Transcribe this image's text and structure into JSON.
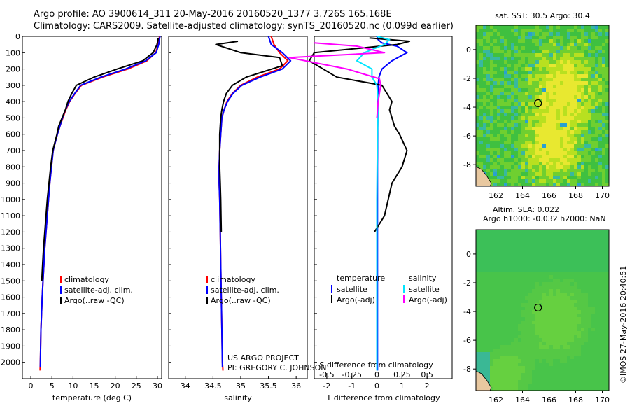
{
  "header": {
    "line1": "Argo profile: AO 3900614_311 20-May-2016 20160520_1377 3.726S 165.168E",
    "line2": "Climatology: CARS2009. Satellite-adjusted climatology: synTS_20160520.nc (0.099d earlier)"
  },
  "credit": {
    "line1": "US ARGO PROJECT",
    "line2": "PI: GREGORY C. JOHNSON"
  },
  "imos_stamp": "©IMOS 27-May-2016 20:40:51",
  "colors": {
    "climatology": "#ff0000",
    "satellite": "#0000ff",
    "argo": "#000000",
    "sal_satellite": "#00e5ff",
    "sal_argo": "#ff00ff"
  },
  "chart_data": [
    {
      "type": "line",
      "xlabel": "temperature (deg C)",
      "ylabel": "",
      "xlim": [
        -2,
        31
      ],
      "ylim": [
        2100,
        0
      ],
      "xticks": [
        0,
        5,
        10,
        15,
        20,
        25,
        30
      ],
      "yticks": [
        0,
        100,
        200,
        300,
        400,
        500,
        600,
        700,
        800,
        900,
        1000,
        1100,
        1200,
        1300,
        1400,
        1500,
        1600,
        1700,
        1800,
        1900,
        2000
      ],
      "legend": [
        "climatology",
        "satellite-adj. clim.",
        "Argo(..raw -QC)"
      ],
      "legend_position": "lower-center",
      "series": [
        {
          "name": "climatology",
          "color": "#ff0000",
          "x": [
            30.5,
            30.2,
            29.6,
            27.5,
            23,
            17,
            12,
            10.5,
            9.2,
            8.3,
            7.6,
            6.9,
            6.3,
            5.8,
            5.3,
            4.9,
            4.5,
            4.2,
            3.9,
            3.6,
            3.3,
            3.1,
            2.9,
            2.7,
            2.55,
            2.4,
            2.3,
            2.2
          ],
          "y": [
            0,
            50,
            100,
            150,
            200,
            250,
            300,
            350,
            400,
            450,
            500,
            550,
            600,
            650,
            700,
            800,
            900,
            1000,
            1100,
            1200,
            1300,
            1400,
            1500,
            1600,
            1700,
            1800,
            1950,
            2050
          ]
        },
        {
          "name": "satellite-adj. clim.",
          "color": "#0000ff",
          "x": [
            30.6,
            30.3,
            29.7,
            27.2,
            22.5,
            16.6,
            11.8,
            10.4,
            9.1,
            8.2,
            7.5,
            6.9,
            6.3,
            5.8,
            5.3,
            4.9,
            4.5,
            4.2,
            3.9,
            3.6,
            3.3,
            3.1,
            2.9,
            2.7,
            2.55,
            2.4,
            2.3,
            2.25
          ],
          "y": [
            0,
            50,
            100,
            150,
            200,
            250,
            300,
            350,
            400,
            450,
            500,
            550,
            600,
            650,
            700,
            800,
            900,
            1000,
            1100,
            1200,
            1300,
            1400,
            1500,
            1600,
            1700,
            1800,
            1950,
            2030
          ]
        },
        {
          "name": "Argo(..raw -QC)",
          "color": "#000000",
          "x": [
            30.2,
            29.9,
            29.0,
            26.5,
            20.5,
            15.0,
            10.8,
            9.7,
            8.8,
            8.2,
            7.4,
            6.6,
            6.2,
            5.7,
            5.2,
            4.7,
            4.3,
            3.9,
            3.6,
            3.3,
            3.0,
            2.8,
            2.6
          ],
          "y": [
            10,
            50,
            100,
            150,
            200,
            250,
            300,
            350,
            400,
            450,
            500,
            550,
            600,
            650,
            700,
            800,
            900,
            1000,
            1100,
            1200,
            1300,
            1400,
            1500
          ]
        }
      ]
    },
    {
      "type": "line",
      "xlabel": "salinity",
      "ylabel": "",
      "xlim": [
        33.7,
        36.2
      ],
      "ylim": [
        2100,
        0
      ],
      "xticks": [
        34,
        34.5,
        35,
        35.5,
        36
      ],
      "legend": [
        "climatology",
        "satellite-adj. clim.",
        "Argo(..raw -QC)"
      ],
      "legend_position": "lower-center",
      "series": [
        {
          "name": "climatology",
          "color": "#ff0000",
          "x": [
            35.55,
            35.6,
            35.7,
            35.85,
            35.7,
            35.3,
            35.0,
            34.85,
            34.75,
            34.7,
            34.66,
            34.64,
            34.62,
            34.61,
            34.61,
            34.62,
            34.63,
            34.64,
            34.65,
            34.66,
            34.67,
            34.68
          ],
          "y": [
            0,
            50,
            100,
            150,
            200,
            250,
            300,
            350,
            400,
            450,
            500,
            600,
            700,
            800,
            900,
            1000,
            1200,
            1400,
            1600,
            1800,
            2000,
            2050
          ]
        },
        {
          "name": "satellite-adj. clim.",
          "color": "#0000ff",
          "x": [
            35.5,
            35.55,
            35.75,
            35.9,
            35.75,
            35.35,
            35.02,
            34.86,
            34.76,
            34.7,
            34.66,
            34.64,
            34.62,
            34.61,
            34.61,
            34.62,
            34.63,
            34.64,
            34.65,
            34.66,
            34.67
          ],
          "y": [
            0,
            50,
            100,
            150,
            200,
            250,
            300,
            350,
            400,
            450,
            500,
            600,
            700,
            800,
            900,
            1000,
            1200,
            1400,
            1600,
            1800,
            2030
          ]
        },
        {
          "name": "Argo(..raw -QC)",
          "color": "#000000",
          "x": [
            34.95,
            34.55,
            35.0,
            35.7,
            35.75,
            35.1,
            34.85,
            34.74,
            34.69,
            34.66,
            34.64,
            34.62,
            34.62,
            34.62,
            34.63,
            34.64,
            34.65
          ],
          "y": [
            30,
            50,
            100,
            130,
            180,
            250,
            300,
            350,
            400,
            450,
            500,
            600,
            700,
            800,
            900,
            1000,
            1200
          ]
        }
      ]
    },
    {
      "type": "line",
      "xlabel": "T difference from climatology",
      "top_label": "S difference from climatology",
      "xlim": [
        -2.5,
        3
      ],
      "ylim": [
        2100,
        0
      ],
      "xticks": [
        -2,
        -1,
        0,
        1,
        2
      ],
      "xticks_top": [
        -0.5,
        -0.25,
        0,
        0.25,
        0.5
      ],
      "xticks_top_labels": [
        "-0.5",
        "-0.25",
        "0",
        "0.25",
        "0.5"
      ],
      "legend_groups": [
        {
          "title": "temperature",
          "entries": [
            "satellite",
            "Argo(-adj)"
          ]
        },
        {
          "title": "salinity",
          "entries": [
            "satellite",
            "Argo(-adj)"
          ]
        }
      ],
      "series": [
        {
          "name": "temperature satellite",
          "color": "#0000ff",
          "x": [
            0,
            0.05,
            0.2,
            0.8,
            1.2,
            0.6,
            0.2,
            0.08,
            0.05,
            0.04,
            0.03,
            0.02,
            0.02,
            0.02
          ],
          "y": [
            0,
            20,
            40,
            60,
            100,
            150,
            200,
            250,
            300,
            400,
            600,
            800,
            1200,
            2050
          ]
        },
        {
          "name": "temperature Argo(-adj)",
          "color": "#000000",
          "x": [
            -0.3,
            1.3,
            0.8,
            -2.5,
            -2.7,
            -1.6,
            0.2,
            0.6,
            0.5,
            0.7,
            0.9,
            1.2,
            1.0,
            0.6,
            0.3,
            -0.1
          ],
          "y": [
            10,
            30,
            50,
            100,
            150,
            250,
            300,
            400,
            450,
            550,
            600,
            700,
            800,
            900,
            1100,
            1200
          ]
        },
        {
          "name": "salinity satellite",
          "color": "#00e5ff",
          "x": [
            0,
            0.5,
            0.3,
            -0.5,
            -0.8,
            -0.2,
            -0.2,
            0.0,
            0.05,
            0.02,
            0.0,
            0.0
          ],
          "y": [
            0,
            20,
            50,
            100,
            150,
            200,
            250,
            300,
            400,
            600,
            1000,
            2050
          ]
        },
        {
          "name": "salinity Argo(-adj)",
          "color": "#ff00ff",
          "x": [
            -2.5,
            -0.8,
            0.3,
            -3.5,
            -1.2,
            0.1,
            0.15,
            0.05,
            0.0
          ],
          "y": [
            40,
            60,
            100,
            130,
            200,
            260,
            300,
            400,
            500
          ]
        }
      ]
    },
    {
      "type": "heatmap",
      "title": "sat. SST: 30.5  Argo: 30.4",
      "xlim": [
        160.5,
        170.5
      ],
      "ylim": [
        -9.5,
        1.7
      ],
      "xticks": [
        162,
        164,
        166,
        168,
        170
      ],
      "yticks": [
        -8,
        -6,
        -4,
        -2,
        0
      ],
      "marker": {
        "lon": 165.168,
        "lat": -3.726
      }
    },
    {
      "type": "heatmap",
      "title": "Altim. SLA: 0.022",
      "subtitle": "Argo h1000: -0.032  h2000: NaN",
      "xlim": [
        160.5,
        170.5
      ],
      "ylim": [
        -9.5,
        1.7
      ],
      "xticks": [
        162,
        164,
        166,
        168,
        170
      ],
      "yticks": [
        -8,
        -6,
        -4,
        -2,
        0
      ],
      "marker": {
        "lon": 165.168,
        "lat": -3.726
      }
    }
  ]
}
